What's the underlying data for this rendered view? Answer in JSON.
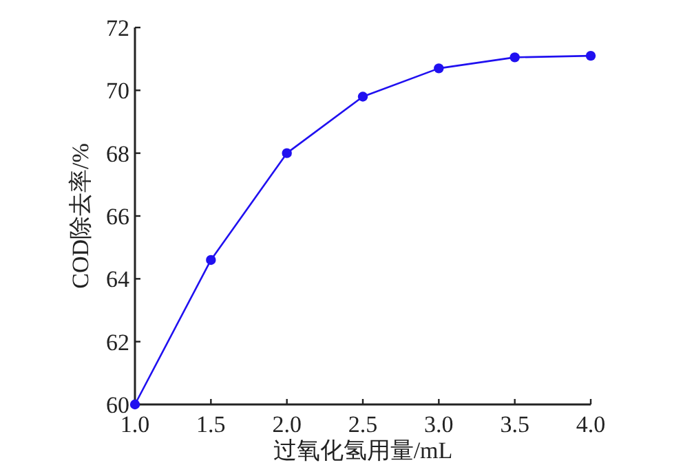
{
  "chart_data": {
    "type": "line",
    "xlabel": "过氧化氢用量/mL",
    "ylabel": "COD除去率/%",
    "x": [
      1.0,
      1.5,
      2.0,
      2.5,
      3.0,
      3.5,
      4.0
    ],
    "values": [
      60.0,
      64.6,
      68.0,
      69.8,
      70.7,
      71.05,
      71.1
    ],
    "color": "#2010f0",
    "marker": "circle",
    "line_style": "solid",
    "xlim": [
      1.0,
      4.0
    ],
    "ylim": [
      60,
      72
    ],
    "xticks": [
      {
        "value": 1.0,
        "label": "1.0"
      },
      {
        "value": 1.5,
        "label": "1.5"
      },
      {
        "value": 2.0,
        "label": "2.0"
      },
      {
        "value": 2.5,
        "label": "2.5"
      },
      {
        "value": 3.0,
        "label": "3.0"
      },
      {
        "value": 3.5,
        "label": "3.5"
      },
      {
        "value": 4.0,
        "label": "4.0"
      }
    ],
    "yticks": [
      60,
      62,
      64,
      66,
      68,
      70,
      72
    ]
  }
}
